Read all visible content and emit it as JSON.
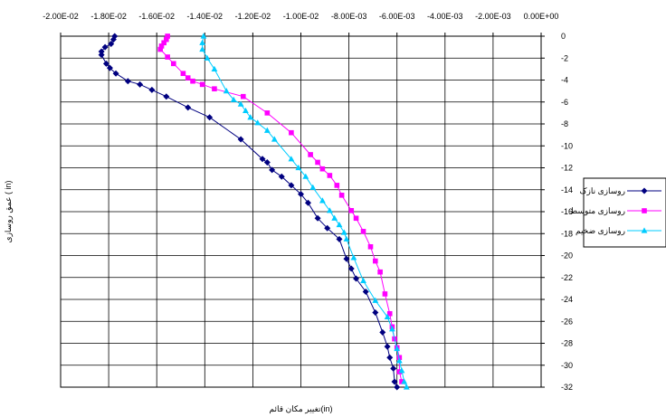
{
  "chart_data": {
    "type": "line",
    "title": "",
    "xlabel": "تغییر مکان قائم(in)",
    "ylabel": "عمق روسازی ( in)",
    "xlim": [
      -0.02,
      0
    ],
    "ylim": [
      -32,
      0
    ],
    "x_ticks": [
      "-2.00E-02",
      "-1.80E-02",
      "-1.60E-02",
      "-1.40E-02",
      "-1.20E-02",
      "-1.00E-02",
      "-8.00E-03",
      "-6.00E-03",
      "-4.00E-03",
      "-2.00E-03",
      "0.00E+00"
    ],
    "y_ticks": [
      "0",
      "-2",
      "-4",
      "-6",
      "-8",
      "-10",
      "-12",
      "-14",
      "-16",
      "-18",
      "-20",
      "-22",
      "-24",
      "-26",
      "-28",
      "-30",
      "-32"
    ],
    "x_axis_position": "top",
    "y_axis_position": "right",
    "grid": true,
    "legend": "right",
    "series": [
      {
        "name": "روسازی نازک",
        "color": "#000080",
        "marker": "diamond",
        "points": [
          [
            -0.01775,
            0
          ],
          [
            -0.0178,
            -0.3
          ],
          [
            -0.0179,
            -0.7
          ],
          [
            -0.01815,
            -1.0
          ],
          [
            -0.0183,
            -1.4
          ],
          [
            -0.0183,
            -1.7
          ],
          [
            -0.0181,
            -2.5
          ],
          [
            -0.01795,
            -2.9
          ],
          [
            -0.0177,
            -3.4
          ],
          [
            -0.0172,
            -4.1
          ],
          [
            -0.0167,
            -4.4
          ],
          [
            -0.0162,
            -4.9
          ],
          [
            -0.0156,
            -5.5
          ],
          [
            -0.0147,
            -6.5
          ],
          [
            -0.0138,
            -7.4
          ],
          [
            -0.0125,
            -9.4
          ],
          [
            -0.0116,
            -11.2
          ],
          [
            -0.0114,
            -11.5
          ],
          [
            -0.0112,
            -12.2
          ],
          [
            -0.0108,
            -12.8
          ],
          [
            -0.0104,
            -13.6
          ],
          [
            -0.01,
            -14.4
          ],
          [
            -0.0097,
            -15.2
          ],
          [
            -0.0093,
            -16.6
          ],
          [
            -0.0089,
            -17.5
          ],
          [
            -0.0084,
            -18.5
          ],
          [
            -0.0081,
            -20.3
          ],
          [
            -0.0079,
            -21.2
          ],
          [
            -0.0077,
            -22.1
          ],
          [
            -0.0073,
            -23.3
          ],
          [
            -0.0069,
            -25.2
          ],
          [
            -0.0066,
            -27.0
          ],
          [
            -0.0064,
            -28.3
          ],
          [
            -0.0063,
            -29.3
          ],
          [
            -0.00615,
            -30.3
          ],
          [
            -0.0061,
            -31.5
          ],
          [
            -0.006,
            -32.0
          ]
        ]
      },
      {
        "name": "روسازی متوسط",
        "color": "#ff00ff",
        "marker": "square",
        "points": [
          [
            -0.01555,
            0
          ],
          [
            -0.0156,
            -0.3
          ],
          [
            -0.0157,
            -0.6
          ],
          [
            -0.0158,
            -0.9
          ],
          [
            -0.01585,
            -1.2
          ],
          [
            -0.01555,
            -1.9
          ],
          [
            -0.0153,
            -2.5
          ],
          [
            -0.0149,
            -3.4
          ],
          [
            -0.0147,
            -3.8
          ],
          [
            -0.0145,
            -4.1
          ],
          [
            -0.0141,
            -4.4
          ],
          [
            -0.0136,
            -4.8
          ],
          [
            -0.0124,
            -5.5
          ],
          [
            -0.0114,
            -7.0
          ],
          [
            -0.0104,
            -8.8
          ],
          [
            -0.0096,
            -10.8
          ],
          [
            -0.0093,
            -11.5
          ],
          [
            -0.0091,
            -12.1
          ],
          [
            -0.0088,
            -12.7
          ],
          [
            -0.0085,
            -13.6
          ],
          [
            -0.0083,
            -14.5
          ],
          [
            -0.0079,
            -15.9
          ],
          [
            -0.0077,
            -16.6
          ],
          [
            -0.0074,
            -17.8
          ],
          [
            -0.0071,
            -19.2
          ],
          [
            -0.0069,
            -20.5
          ],
          [
            -0.0067,
            -21.5
          ],
          [
            -0.0065,
            -23.5
          ],
          [
            -0.0063,
            -25.3
          ],
          [
            -0.0062,
            -26.5
          ],
          [
            -0.0061,
            -27.6
          ],
          [
            -0.006,
            -28.4
          ],
          [
            -0.0059,
            -29.3
          ],
          [
            -0.0059,
            -30.6
          ],
          [
            -0.0058,
            -31.5
          ]
        ]
      },
      {
        "name": "روسازی ضخیم",
        "color": "#00ccff",
        "marker": "triangle",
        "points": [
          [
            -0.01405,
            0
          ],
          [
            -0.0141,
            -0.6
          ],
          [
            -0.0141,
            -1.2
          ],
          [
            -0.0139,
            -2.0
          ],
          [
            -0.0136,
            -3.0
          ],
          [
            -0.0131,
            -5.0
          ],
          [
            -0.0128,
            -5.8
          ],
          [
            -0.0125,
            -6.2
          ],
          [
            -0.0123,
            -6.8
          ],
          [
            -0.0121,
            -7.4
          ],
          [
            -0.0118,
            -7.9
          ],
          [
            -0.0114,
            -8.6
          ],
          [
            -0.0111,
            -9.4
          ],
          [
            -0.0104,
            -11.2
          ],
          [
            -0.0101,
            -12.0
          ],
          [
            -0.0098,
            -12.8
          ],
          [
            -0.0095,
            -13.8
          ],
          [
            -0.0091,
            -15.0
          ],
          [
            -0.0088,
            -15.9
          ],
          [
            -0.0086,
            -16.6
          ],
          [
            -0.0084,
            -17.2
          ],
          [
            -0.0082,
            -17.9
          ],
          [
            -0.0081,
            -18.5
          ],
          [
            -0.0078,
            -20.2
          ],
          [
            -0.0074,
            -22.3
          ],
          [
            -0.0069,
            -24.1
          ],
          [
            -0.0064,
            -25.6
          ],
          [
            -0.0062,
            -26.7
          ],
          [
            -0.006,
            -28.5
          ],
          [
            -0.0059,
            -29.6
          ],
          [
            -0.0058,
            -30.5
          ],
          [
            -0.0057,
            -31.5
          ],
          [
            -0.0056,
            -32.0
          ]
        ]
      }
    ]
  }
}
